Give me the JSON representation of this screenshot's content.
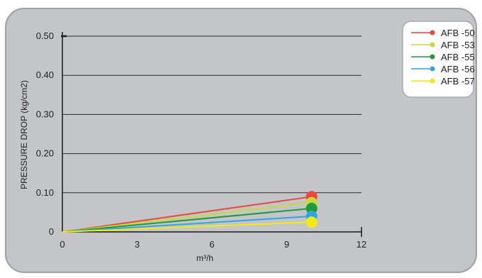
{
  "chart_data": {
    "type": "line",
    "title": "",
    "xlabel": "m³/h",
    "ylabel": "PRESSURE DROP (kg/cm2)",
    "xlim": [
      0,
      12
    ],
    "ylim": [
      0,
      0.5
    ],
    "x_ticks": [
      "0",
      "3",
      "6",
      "9",
      "12"
    ],
    "y_ticks": [
      "0",
      "0.10",
      "0.20",
      "0.30",
      "0.40",
      "0.50"
    ],
    "grid": "horizontal",
    "legend": "top-right",
    "series": [
      {
        "name": "AFB -50",
        "color": "#e8473a",
        "x": [
          0,
          10
        ],
        "y": [
          0,
          0.09
        ]
      },
      {
        "name": "AFB -53",
        "color": "#c9d83a",
        "x": [
          0,
          10
        ],
        "y": [
          0,
          0.075
        ]
      },
      {
        "name": "AFB -55",
        "color": "#1f9a3b",
        "x": [
          0,
          10
        ],
        "y": [
          0,
          0.06
        ]
      },
      {
        "name": "AFB -56",
        "color": "#2ea6e0",
        "x": [
          0,
          10
        ],
        "y": [
          0,
          0.04
        ]
      },
      {
        "name": "AFB -57",
        "color": "#f2ea12",
        "x": [
          0,
          10
        ],
        "y": [
          0,
          0.025
        ]
      }
    ]
  }
}
